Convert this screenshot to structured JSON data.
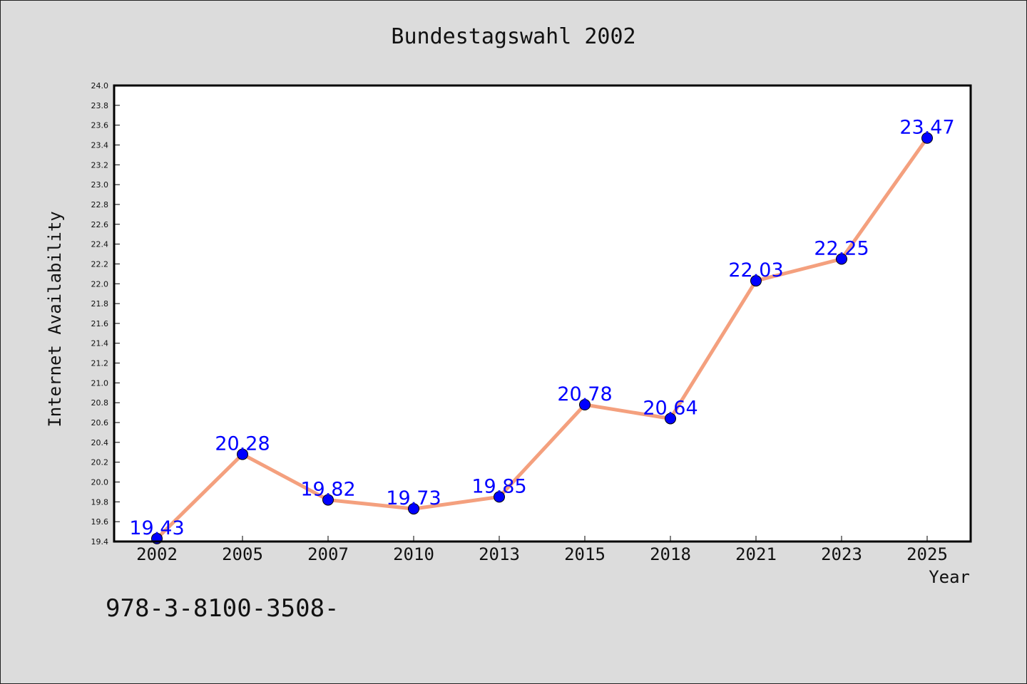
{
  "chart_data": {
    "type": "line",
    "title": "Bundestagswahl 2002",
    "xlabel": "Year",
    "ylabel": "Internet Availability",
    "categories": [
      "2002",
      "2005",
      "2007",
      "2010",
      "2013",
      "2015",
      "2018",
      "2021",
      "2023",
      "2025"
    ],
    "series": [
      {
        "values": [
          19.43,
          20.28,
          19.82,
          19.73,
          19.85,
          20.78,
          20.64,
          22.03,
          22.25,
          23.47
        ]
      }
    ],
    "data_labels": [
      "19.43",
      "20.28",
      "19.82",
      "19.73",
      "19.85",
      "20.78",
      "20.64",
      "22.03",
      "22.25",
      "23.47"
    ],
    "ylim": [
      19.4,
      24.0
    ],
    "y_ticks": [
      "19.4",
      "19.6",
      "19.8",
      "20.0",
      "20.2",
      "20.4",
      "20.6",
      "20.8",
      "21.0",
      "21.2",
      "21.4",
      "21.6",
      "21.8",
      "22.0",
      "22.2",
      "22.4",
      "22.6",
      "22.8",
      "23.0",
      "23.2",
      "23.4",
      "23.6",
      "23.8",
      "24.0"
    ],
    "grid": false,
    "legend": "none",
    "colors": {
      "line": "#f4a07e",
      "marker": "#0000ff",
      "data_label": "#0000ff",
      "background": "#dcdcdc",
      "plot_background": "#ffffff"
    }
  },
  "footnote": "978-3-8100-3508-"
}
